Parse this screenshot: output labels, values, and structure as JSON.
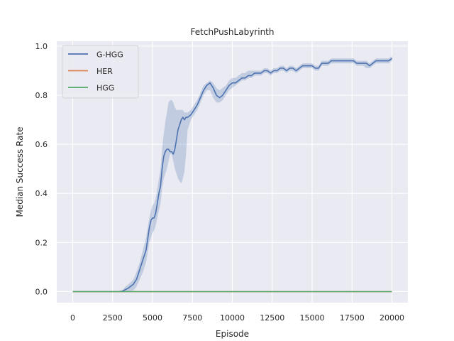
{
  "chart_data": {
    "type": "line",
    "title": "FetchPushLabyrinth",
    "xlabel": "Episode",
    "ylabel": "Median Success Rate",
    "xlim": [
      -1000,
      21000
    ],
    "ylim": [
      -0.045,
      1.02
    ],
    "xticks": [
      0,
      2500,
      5000,
      7500,
      10000,
      12500,
      15000,
      17500,
      20000
    ],
    "xtick_labels": [
      "0",
      "2500",
      "5000",
      "7500",
      "10000",
      "12500",
      "15000",
      "17500",
      "20000"
    ],
    "yticks": [
      0.0,
      0.2,
      0.4,
      0.6,
      0.8,
      1.0
    ],
    "ytick_labels": [
      "0.0",
      "0.2",
      "0.4",
      "0.6",
      "0.8",
      "1.0"
    ],
    "grid": true,
    "legend_position": "top-left",
    "colors": {
      "background": "#eaeaf2",
      "grid": "#ffffff",
      "g_hgg": "#4c72b0",
      "her": "#dd8452",
      "hgg": "#55a868"
    },
    "series": [
      {
        "name": "G-HGG",
        "color": "#4c72b0",
        "x": [
          0,
          1000,
          2000,
          2800,
          3100,
          3300,
          3500,
          3800,
          4000,
          4200,
          4400,
          4600,
          4800,
          4900,
          5000,
          5100,
          5200,
          5300,
          5400,
          5500,
          5600,
          5700,
          5800,
          5900,
          6000,
          6100,
          6200,
          6300,
          6400,
          6500,
          6600,
          6700,
          6800,
          6900,
          7000,
          7100,
          7200,
          7400,
          7600,
          7800,
          8000,
          8200,
          8400,
          8600,
          8800,
          9000,
          9200,
          9400,
          9600,
          9800,
          10000,
          10200,
          10400,
          10600,
          10800,
          11000,
          11200,
          11400,
          11600,
          11800,
          12000,
          12200,
          12400,
          12600,
          12800,
          13000,
          13200,
          13400,
          13600,
          13800,
          14000,
          14200,
          14400,
          14600,
          14800,
          15000,
          15200,
          15400,
          15600,
          15800,
          16000,
          16200,
          16400,
          16600,
          16800,
          17000,
          17200,
          17400,
          17600,
          17800,
          18000,
          18200,
          18400,
          18600,
          18800,
          19000,
          19200,
          19400,
          19600,
          19800,
          20000
        ],
        "values": [
          0.0,
          0.0,
          0.0,
          0.0,
          0.002,
          0.008,
          0.015,
          0.03,
          0.05,
          0.09,
          0.13,
          0.17,
          0.26,
          0.29,
          0.3,
          0.3,
          0.32,
          0.36,
          0.4,
          0.43,
          0.5,
          0.55,
          0.57,
          0.58,
          0.58,
          0.57,
          0.57,
          0.56,
          0.58,
          0.62,
          0.66,
          0.68,
          0.7,
          0.71,
          0.7,
          0.71,
          0.71,
          0.72,
          0.74,
          0.76,
          0.79,
          0.82,
          0.84,
          0.85,
          0.83,
          0.8,
          0.79,
          0.8,
          0.82,
          0.84,
          0.85,
          0.85,
          0.86,
          0.87,
          0.87,
          0.88,
          0.88,
          0.89,
          0.89,
          0.89,
          0.9,
          0.9,
          0.89,
          0.9,
          0.9,
          0.91,
          0.91,
          0.9,
          0.91,
          0.91,
          0.9,
          0.91,
          0.92,
          0.92,
          0.92,
          0.92,
          0.91,
          0.91,
          0.93,
          0.93,
          0.93,
          0.94,
          0.94,
          0.94,
          0.94,
          0.94,
          0.94,
          0.94,
          0.94,
          0.93,
          0.93,
          0.93,
          0.93,
          0.92,
          0.93,
          0.94,
          0.94,
          0.94,
          0.94,
          0.94,
          0.95
        ],
        "lower": [
          0.0,
          0.0,
          0.0,
          0.0,
          0.0,
          0.0,
          0.0,
          0.005,
          0.02,
          0.05,
          0.08,
          0.12,
          0.2,
          0.22,
          0.24,
          0.25,
          0.27,
          0.3,
          0.33,
          0.36,
          0.42,
          0.46,
          0.48,
          0.5,
          0.53,
          0.56,
          0.56,
          0.53,
          0.5,
          0.48,
          0.46,
          0.45,
          0.44,
          0.46,
          0.49,
          0.56,
          0.66,
          0.7,
          0.72,
          0.74,
          0.77,
          0.8,
          0.82,
          0.82,
          0.79,
          0.77,
          0.77,
          0.78,
          0.8,
          0.82,
          0.83,
          0.84,
          0.85,
          0.86,
          0.86,
          0.87,
          0.87,
          0.88,
          0.88,
          0.88,
          0.89,
          0.89,
          0.88,
          0.89,
          0.89,
          0.9,
          0.9,
          0.89,
          0.9,
          0.9,
          0.89,
          0.9,
          0.91,
          0.91,
          0.91,
          0.91,
          0.9,
          0.9,
          0.92,
          0.92,
          0.92,
          0.93,
          0.93,
          0.93,
          0.93,
          0.93,
          0.93,
          0.93,
          0.93,
          0.92,
          0.92,
          0.92,
          0.91,
          0.91,
          0.92,
          0.93,
          0.93,
          0.93,
          0.93,
          0.93,
          0.94
        ],
        "upper": [
          0.0,
          0.0,
          0.0,
          0.0,
          0.005,
          0.02,
          0.03,
          0.05,
          0.08,
          0.12,
          0.17,
          0.22,
          0.3,
          0.33,
          0.35,
          0.36,
          0.38,
          0.42,
          0.46,
          0.5,
          0.58,
          0.64,
          0.69,
          0.73,
          0.77,
          0.78,
          0.78,
          0.77,
          0.75,
          0.74,
          0.74,
          0.74,
          0.74,
          0.74,
          0.73,
          0.73,
          0.73,
          0.74,
          0.76,
          0.78,
          0.81,
          0.84,
          0.85,
          0.86,
          0.85,
          0.83,
          0.82,
          0.83,
          0.84,
          0.86,
          0.87,
          0.87,
          0.88,
          0.89,
          0.89,
          0.9,
          0.9,
          0.9,
          0.9,
          0.9,
          0.91,
          0.91,
          0.9,
          0.91,
          0.91,
          0.92,
          0.92,
          0.91,
          0.92,
          0.92,
          0.91,
          0.92,
          0.93,
          0.93,
          0.93,
          0.93,
          0.92,
          0.92,
          0.94,
          0.94,
          0.94,
          0.95,
          0.95,
          0.95,
          0.95,
          0.95,
          0.95,
          0.95,
          0.95,
          0.94,
          0.94,
          0.94,
          0.94,
          0.93,
          0.94,
          0.95,
          0.95,
          0.95,
          0.95,
          0.95,
          0.96
        ]
      },
      {
        "name": "HER",
        "color": "#dd8452",
        "x": [
          0,
          20000
        ],
        "values": [
          0.0,
          0.0
        ]
      },
      {
        "name": "HGG",
        "color": "#55a868",
        "x": [
          0,
          20000
        ],
        "values": [
          0.0,
          0.0
        ]
      }
    ]
  }
}
